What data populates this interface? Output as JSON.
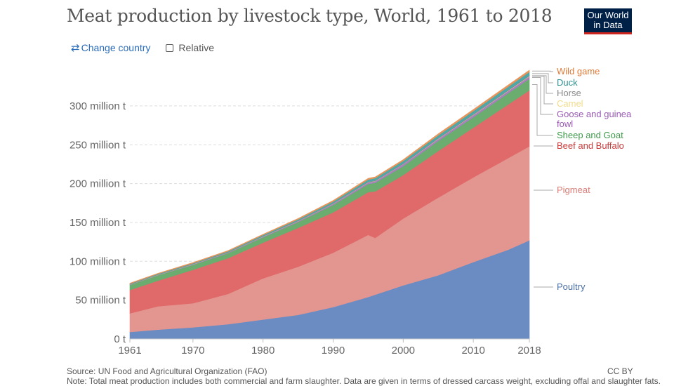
{
  "header": {
    "title": "Meat production by livestock type, World, 1961 to 2018",
    "logo_line1": "Our World",
    "logo_line2": "in Data"
  },
  "controls": {
    "change_country_label": "Change country",
    "change_country_icon": "swap-arrows-icon",
    "relative_label": "Relative",
    "relative_checked": false
  },
  "footer": {
    "source": "Source: UN Food and Agricultural Organization (FAO)",
    "license": "CC BY",
    "note": "Note: Total meat production includes both commercial and farm slaughter. Data are given in terms of dressed carcass weight, excluding offal and slaughter fats."
  },
  "chart_data": {
    "type": "area",
    "stacked": true,
    "title": "Meat production by livestock type, World, 1961 to 2018",
    "xlabel": "",
    "ylabel": "",
    "x": [
      1961,
      1965,
      1970,
      1975,
      1980,
      1985,
      1990,
      1995,
      1996,
      2000,
      2005,
      2010,
      2015,
      2018
    ],
    "xticks": [
      1961,
      1970,
      1980,
      1990,
      2000,
      2010,
      2018
    ],
    "yticks": [
      0,
      50,
      100,
      150,
      200,
      250,
      300
    ],
    "ytick_labels": [
      "0 t",
      "50 million t",
      "100 million t",
      "150 million t",
      "200 million t",
      "250 million t",
      "300 million t"
    ],
    "ylim": [
      0,
      345
    ],
    "grid": true,
    "legend_position": "right (line labels)",
    "series": [
      {
        "name": "Poultry",
        "color": "#6a8cc2",
        "values": [
          9,
          12,
          15,
          19,
          25,
          31,
          41,
          54,
          57,
          69,
          82,
          99,
          115,
          127
        ]
      },
      {
        "name": "Pigmeat",
        "color": "#e39590",
        "values": [
          24,
          30,
          31,
          39,
          53,
          62,
          70,
          80,
          73,
          86,
          100,
          109,
          118,
          121
        ]
      },
      {
        "name": "Beef and Buffalo",
        "color": "#e06a6a",
        "values": [
          30,
          33,
          43,
          46,
          46,
          50,
          52,
          55,
          60,
          56,
          60,
          64,
          69,
          72
        ]
      },
      {
        "name": "Sheep and Goat",
        "color": "#6aad6e",
        "values": [
          6.5,
          7,
          6.5,
          6.5,
          7,
          7.5,
          9.5,
          10.5,
          11,
          11.5,
          13,
          13.5,
          14.5,
          15
        ]
      },
      {
        "name": "Goose and guinea fowl",
        "color": "#a67fbf",
        "values": [
          0.3,
          0.4,
          0.5,
          0.6,
          0.8,
          1,
          1.5,
          2,
          2.1,
          2.5,
          2.5,
          2.7,
          2.8,
          2.9
        ]
      },
      {
        "name": "Camel",
        "color": "#f2dc8a",
        "values": [
          0.15,
          0.17,
          0.2,
          0.2,
          0.22,
          0.25,
          0.27,
          0.3,
          0.3,
          0.32,
          0.35,
          0.4,
          0.5,
          0.6
        ]
      },
      {
        "name": "Horse",
        "color": "#888888",
        "values": [
          0.5,
          0.5,
          0.5,
          0.5,
          0.5,
          0.55,
          0.55,
          0.6,
          0.6,
          0.65,
          0.7,
          0.75,
          0.8,
          0.8
        ]
      },
      {
        "name": "Duck",
        "color": "#4fa8a8",
        "values": [
          0.6,
          0.7,
          0.8,
          1,
          1.3,
          1.6,
          2,
          2.8,
          3,
          3.2,
          3.6,
          4,
          4.3,
          4.5
        ]
      },
      {
        "name": "Wild game",
        "color": "#e8945a",
        "values": [
          0.8,
          0.8,
          0.9,
          1,
          1,
          1.2,
          1.5,
          1.6,
          1.6,
          1.7,
          2,
          2.1,
          2.2,
          2.2
        ]
      }
    ]
  }
}
